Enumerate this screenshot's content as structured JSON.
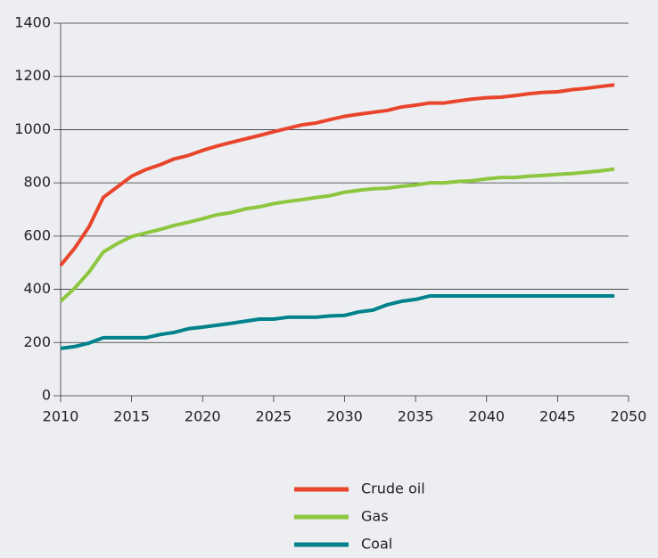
{
  "chart_data": {
    "type": "line",
    "x": [
      2010,
      2011,
      2012,
      2013,
      2014,
      2015,
      2016,
      2017,
      2018,
      2019,
      2020,
      2021,
      2022,
      2023,
      2024,
      2025,
      2026,
      2027,
      2028,
      2029,
      2030,
      2031,
      2032,
      2033,
      2034,
      2035,
      2036,
      2037,
      2038,
      2039,
      2040,
      2041,
      2042,
      2043,
      2044,
      2045,
      2046,
      2047,
      2048,
      2049
    ],
    "series": [
      {
        "name": "Crude oil",
        "color": "#e8452c",
        "values": [
          490,
          555,
          635,
          745,
          785,
          825,
          850,
          868,
          890,
          903,
          922,
          938,
          952,
          965,
          978,
          992,
          1005,
          1018,
          1025,
          1038,
          1050,
          1058,
          1065,
          1072,
          1085,
          1092,
          1100,
          1100,
          1108,
          1115,
          1120,
          1122,
          1128,
          1135,
          1140,
          1142,
          1150,
          1155,
          1162,
          1168
        ]
      },
      {
        "name": "Gas",
        "color": "#8dc63f",
        "values": [
          355,
          405,
          465,
          540,
          572,
          598,
          612,
          625,
          640,
          652,
          665,
          680,
          688,
          702,
          710,
          722,
          730,
          737,
          745,
          752,
          765,
          772,
          778,
          780,
          787,
          792,
          800,
          800,
          805,
          808,
          815,
          820,
          820,
          825,
          828,
          832,
          835,
          840,
          845,
          852
        ]
      },
      {
        "name": "Coal",
        "color": "#00828c",
        "values": [
          178,
          185,
          198,
          218,
          218,
          218,
          218,
          230,
          238,
          252,
          258,
          265,
          272,
          280,
          288,
          288,
          295,
          295,
          295,
          300,
          302,
          315,
          322,
          342,
          355,
          362,
          375,
          375,
          375,
          375,
          375,
          375,
          375,
          375,
          375,
          375,
          375,
          375,
          375,
          375
        ]
      }
    ],
    "xlim": [
      2010,
      2050
    ],
    "xticks": [
      2010,
      2015,
      2020,
      2025,
      2030,
      2035,
      2040,
      2045,
      2050
    ],
    "ylim": [
      0,
      1400
    ],
    "yticks": [
      0,
      200,
      400,
      600,
      800,
      1000,
      1200,
      1400
    ],
    "grid": true,
    "legend": "bottom"
  }
}
